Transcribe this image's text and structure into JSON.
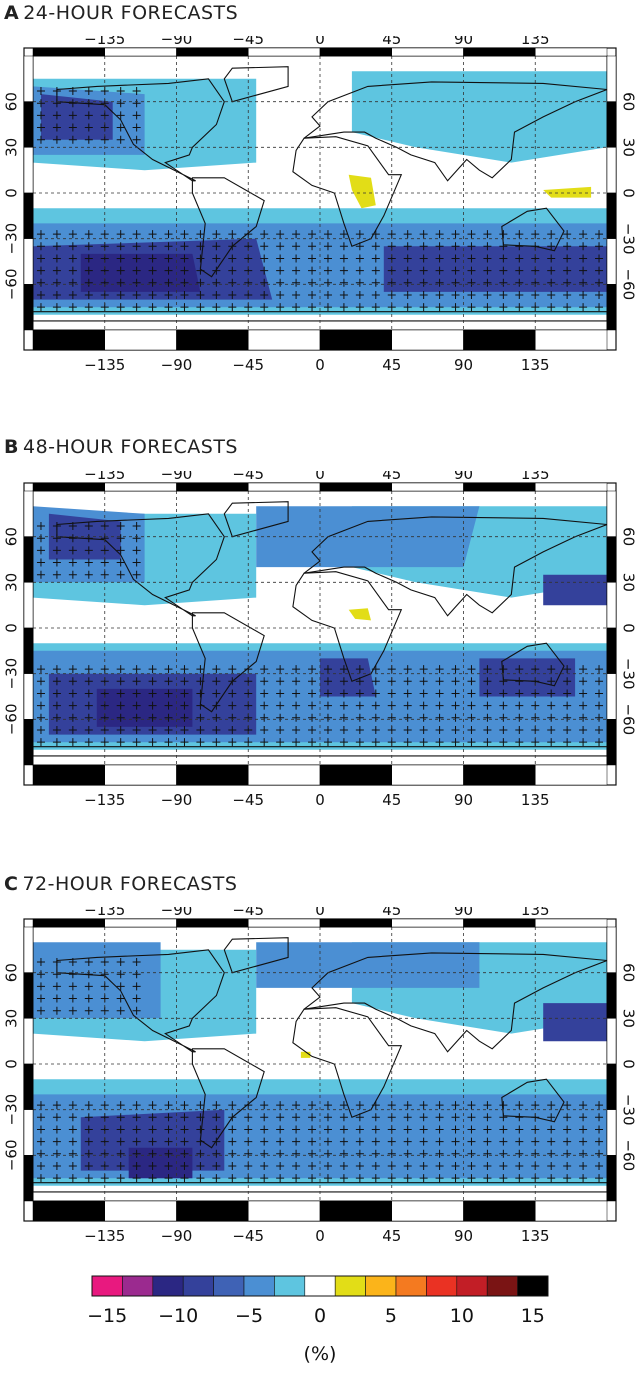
{
  "panels": [
    {
      "letter": "A",
      "title": "24-HOUR FORECASTS"
    },
    {
      "letter": "B",
      "title": "48-HOUR FORECASTS"
    },
    {
      "letter": "C",
      "title": "72-HOUR FORECASTS"
    }
  ],
  "lon_ticks": [
    "−135",
    "−90",
    "−45",
    "0",
    "45",
    "90",
    "135"
  ],
  "lat_ticks_left": [
    "60",
    "30",
    "0",
    "−30",
    "−60"
  ],
  "lat_ticks_right": [
    "60",
    "30",
    "0",
    "−30",
    "−60"
  ],
  "colorbar": {
    "colors": [
      "#e8197f",
      "#9b2a8f",
      "#2b2783",
      "#34419b",
      "#3f62b5",
      "#4b8fd3",
      "#5ec5e0",
      "#ffffff",
      "#e2dd17",
      "#fbb41a",
      "#f47a20",
      "#ea3223",
      "#c21e26",
      "#7a1414",
      "#000000"
    ],
    "labels": [
      "−15",
      "−10",
      "−5",
      "0",
      "5",
      "10",
      "15"
    ],
    "unit": "(%)"
  },
  "palette": {
    "light_blue": "#5ec5e0",
    "mid_blue": "#4b8fd3",
    "blue": "#3f62b5",
    "dark_blue": "#34419b",
    "navy": "#2b2783",
    "yellow": "#e2dd17"
  }
}
